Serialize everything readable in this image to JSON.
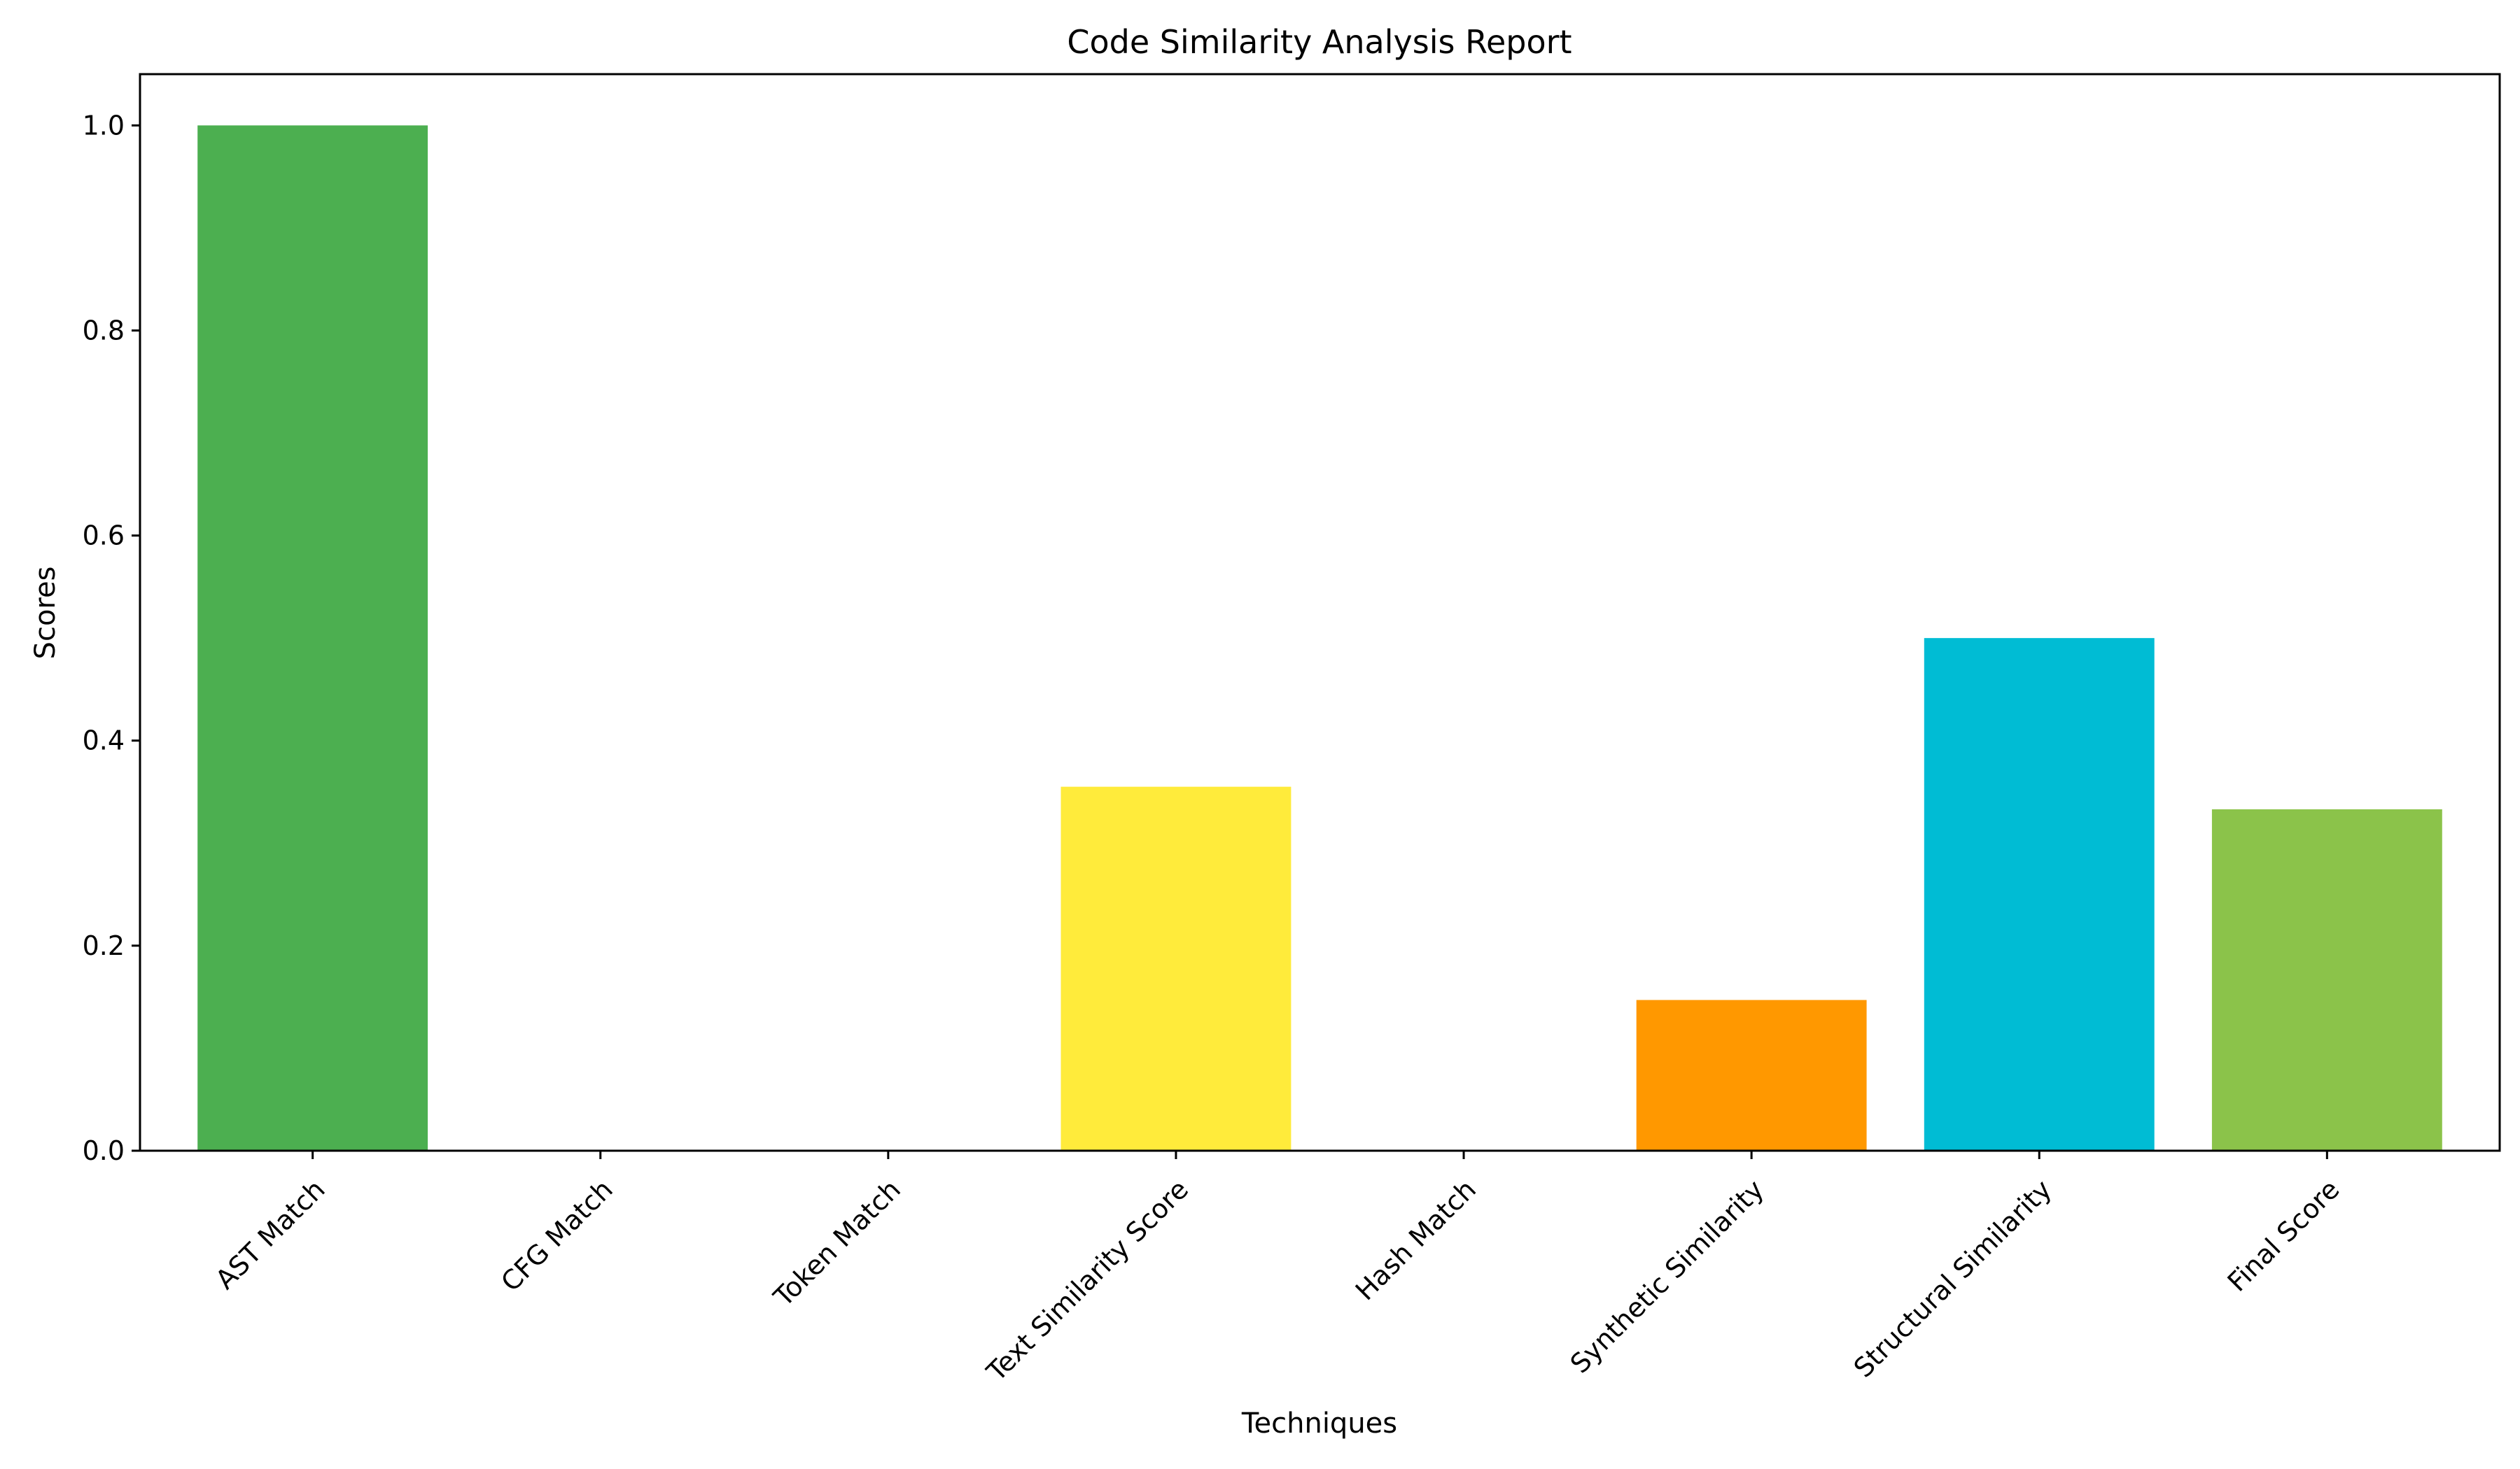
{
  "chart_data": {
    "type": "bar",
    "title": "Code Similarity Analysis Report",
    "xlabel": "Techniques",
    "ylabel": "Scores",
    "ylim": [
      0,
      1.05
    ],
    "yticks": [
      0.0,
      0.2,
      0.4,
      0.6,
      0.8,
      1.0
    ],
    "ytick_labels": [
      "0.0",
      "0.2",
      "0.4",
      "0.6",
      "0.8",
      "1.0"
    ],
    "categories": [
      "AST Match",
      "CFG Match",
      "Token Match",
      "Text Similarity Score",
      "Hash Match",
      "Synthetic Similarity",
      "Structural Similarity",
      "Final Score"
    ],
    "values": [
      1.0,
      0.0,
      0.0,
      0.355,
      0.0,
      0.147,
      0.5,
      0.333
    ],
    "colors": [
      "#4caf50",
      "#f44336",
      "#2196f3",
      "#ffeb3b",
      "#9c27b0",
      "#ff9800",
      "#00bcd4",
      "#8bc34a"
    ],
    "grid": false,
    "legend": "none"
  }
}
